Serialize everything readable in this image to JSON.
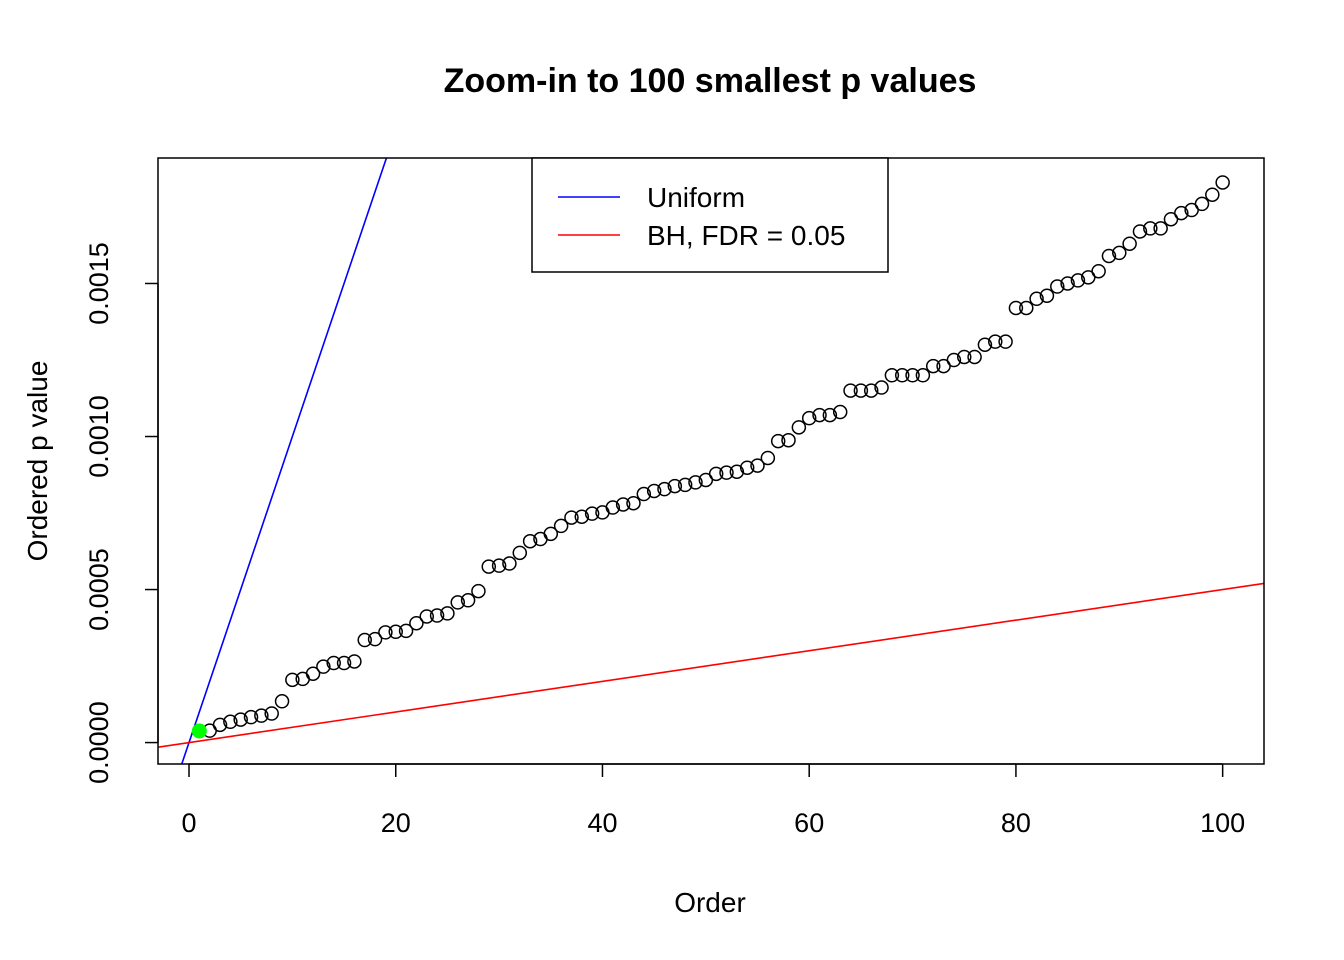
{
  "chart_data": {
    "type": "scatter",
    "title": "Zoom-in to 100 smallest p values",
    "xlabel": "Order",
    "ylabel": "Ordered p value",
    "xlim": [
      -3,
      104
    ],
    "ylim": [
      -7e-05,
      0.00191
    ],
    "x_ticks": [
      0,
      20,
      40,
      60,
      80,
      100
    ],
    "x_tick_labels": [
      "0",
      "20",
      "40",
      "60",
      "80",
      "100"
    ],
    "y_ticks": [
      0,
      0.0005,
      0.001,
      0.0015
    ],
    "y_tick_labels": [
      "0.0000",
      "0.0005",
      "0.0010",
      "0.0015"
    ],
    "grid": false,
    "legend": {
      "position": "top-center",
      "entries": [
        {
          "label": "Uniform",
          "color": "#0000ff"
        },
        {
          "label": "BH, FDR = 0.05",
          "color": "#ff0000"
        }
      ]
    },
    "lines": [
      {
        "name": "Uniform",
        "color": "#0000ff",
        "slope": 0.0001,
        "intercept": 0
      },
      {
        "name": "BH, FDR = 0.05",
        "color": "#ff0000",
        "slope": 5e-06,
        "intercept": 0
      }
    ],
    "highlight": {
      "x": 1,
      "y": 3.8e-05,
      "color": "#00ff00"
    },
    "points": {
      "x": [
        1,
        2,
        3,
        4,
        5,
        6,
        7,
        8,
        9,
        10,
        11,
        12,
        13,
        14,
        15,
        16,
        17,
        18,
        19,
        20,
        21,
        22,
        23,
        24,
        25,
        26,
        27,
        28,
        29,
        30,
        31,
        32,
        33,
        34,
        35,
        36,
        37,
        38,
        39,
        40,
        41,
        42,
        43,
        44,
        45,
        46,
        47,
        48,
        49,
        50,
        51,
        52,
        53,
        54,
        55,
        56,
        57,
        58,
        59,
        60,
        61,
        62,
        63,
        64,
        65,
        66,
        67,
        68,
        69,
        70,
        71,
        72,
        73,
        74,
        75,
        76,
        77,
        78,
        79,
        80,
        81,
        82,
        83,
        84,
        85,
        86,
        87,
        88,
        89,
        90,
        91,
        92,
        93,
        94,
        95,
        96,
        97,
        98,
        99,
        100
      ],
      "y": [
        3.8e-05,
        3.9e-05,
        5.8e-05,
        6.8e-05,
        7.5e-05,
        8.3e-05,
        8.8e-05,
        9.5e-05,
        0.000135,
        0.000205,
        0.000208,
        0.000225,
        0.000248,
        0.00026,
        0.00026,
        0.000265,
        0.000335,
        0.000338,
        0.00036,
        0.000362,
        0.000365,
        0.00039,
        0.000412,
        0.000415,
        0.000422,
        0.000458,
        0.000465,
        0.000495,
        0.000575,
        0.000578,
        0.000585,
        0.00062,
        0.000658,
        0.000665,
        0.000682,
        0.000708,
        0.000735,
        0.000738,
        0.000748,
        0.000752,
        0.000768,
        0.000778,
        0.000782,
        0.000812,
        0.000822,
        0.000828,
        0.000838,
        0.000842,
        0.00085,
        0.000858,
        0.000878,
        0.000882,
        0.000885,
        0.000898,
        0.000905,
        0.00093,
        0.000985,
        0.000988,
        0.00103,
        0.00106,
        0.00107,
        0.00107,
        0.00108,
        0.00115,
        0.00115,
        0.00115,
        0.00116,
        0.0012,
        0.0012,
        0.0012,
        0.0012,
        0.00123,
        0.00123,
        0.00125,
        0.00126,
        0.00126,
        0.0013,
        0.00131,
        0.00131,
        0.00142,
        0.00142,
        0.00145,
        0.00146,
        0.00149,
        0.0015,
        0.00151,
        0.00152,
        0.00154,
        0.00159,
        0.0016,
        0.00163,
        0.00167,
        0.00168,
        0.00168,
        0.00171,
        0.00173,
        0.00174,
        0.00176,
        0.00179,
        0.00183
      ]
    }
  }
}
